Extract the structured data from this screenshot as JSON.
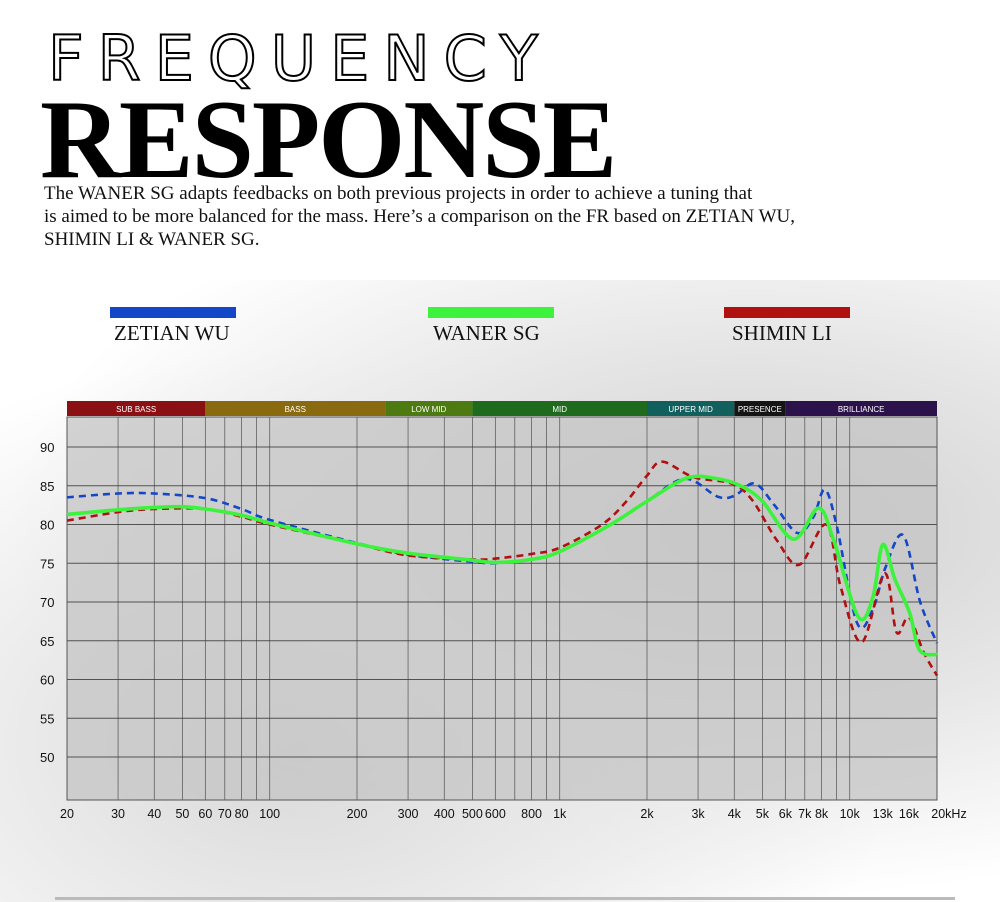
{
  "header": {
    "title_line1": "FREQUENCY",
    "title_line2": "RESPONSE",
    "description_lines": [
      "The WANER SG adapts feedbacks on both previous projects in order to achieve a tuning that",
      "is aimed to be more balanced for the mass. Here’s a comparison on the FR based on ZETIAN WU,",
      "SHIMIN LI & WANER SG."
    ]
  },
  "legend": [
    {
      "name": "ZETIAN WU",
      "color": "#1446c8",
      "style": "dashed"
    },
    {
      "name": "WANER SG",
      "color": "#3cf23c",
      "style": "solid"
    },
    {
      "name": "SHIMIN LI",
      "color": "#b01010",
      "style": "dashed"
    }
  ],
  "chart_data": {
    "type": "line",
    "x_scale": "log",
    "xlim": [
      20,
      20000
    ],
    "ylim": [
      44.5,
      94
    ],
    "grid": true,
    "legend_position": "top",
    "x_ticks": [
      20,
      30,
      40,
      50,
      60,
      70,
      80,
      100,
      200,
      300,
      400,
      500,
      600,
      800,
      1000,
      2000,
      3000,
      4000,
      5000,
      6000,
      7000,
      8000,
      10000,
      13000,
      16000,
      20000
    ],
    "x_tick_labels": [
      "20",
      "30",
      "40",
      "50",
      "60",
      "70",
      "80",
      "100",
      "200",
      "300",
      "400",
      "500",
      "600",
      "800",
      "1k",
      "2k",
      "3k",
      "4k",
      "5k",
      "6k",
      "7k",
      "8k",
      "10k",
      "13k",
      "16k",
      "20kHz"
    ],
    "y_ticks": [
      50,
      55,
      60,
      65,
      70,
      75,
      80,
      85,
      90
    ],
    "y_tick_labels": [
      "50",
      "55",
      "60",
      "65",
      "70",
      "75",
      "80",
      "85",
      "90"
    ],
    "bands": [
      {
        "label": "SUB BASS",
        "from": 20,
        "to": 60,
        "color": "#8b1014"
      },
      {
        "label": "BASS",
        "from": 60,
        "to": 250,
        "color": "#8a6a0e"
      },
      {
        "label": "LOW MID",
        "from": 250,
        "to": 500,
        "color": "#4e7a12"
      },
      {
        "label": "MID",
        "from": 500,
        "to": 2000,
        "color": "#1f6b1e"
      },
      {
        "label": "UPPER MID",
        "from": 2000,
        "to": 4000,
        "color": "#12605e"
      },
      {
        "label": "PRESENCE",
        "from": 4000,
        "to": 6000,
        "color": "#151515"
      },
      {
        "label": "BRILLIANCE",
        "from": 6000,
        "to": 20000,
        "color": "#2c124a"
      }
    ],
    "series": [
      {
        "name": "ZETIAN WU",
        "color": "#1446c8",
        "dashed": true,
        "points": [
          [
            20,
            83.5
          ],
          [
            30,
            84
          ],
          [
            40,
            84
          ],
          [
            60,
            83.4
          ],
          [
            80,
            82
          ],
          [
            100,
            80.6
          ],
          [
            200,
            77.6
          ],
          [
            300,
            76.1
          ],
          [
            500,
            75.2
          ],
          [
            600,
            75
          ],
          [
            800,
            75.5
          ],
          [
            1000,
            76.5
          ],
          [
            1500,
            80
          ],
          [
            2000,
            83
          ],
          [
            2700,
            85.9
          ],
          [
            3500,
            83.6
          ],
          [
            4000,
            83.7
          ],
          [
            4700,
            85.3
          ],
          [
            5500,
            82.5
          ],
          [
            6600,
            78.9
          ],
          [
            7500,
            81
          ],
          [
            8200,
            84.5
          ],
          [
            9000,
            80
          ],
          [
            10600,
            67.3
          ],
          [
            12000,
            69
          ],
          [
            13300,
            74.5
          ],
          [
            15300,
            78.6
          ],
          [
            17500,
            70
          ],
          [
            20000,
            64.7
          ]
        ]
      },
      {
        "name": "SHIMIN LI",
        "color": "#b01010",
        "dashed": true,
        "points": [
          [
            20,
            80.5
          ],
          [
            30,
            81.6
          ],
          [
            40,
            82
          ],
          [
            60,
            82
          ],
          [
            80,
            81
          ],
          [
            100,
            80
          ],
          [
            200,
            77.5
          ],
          [
            300,
            76
          ],
          [
            500,
            75.5
          ],
          [
            600,
            75.6
          ],
          [
            800,
            76.2
          ],
          [
            1000,
            77
          ],
          [
            1400,
            80
          ],
          [
            1700,
            83
          ],
          [
            2000,
            86.3
          ],
          [
            2260,
            88.1
          ],
          [
            2900,
            86.1
          ],
          [
            3900,
            85.3
          ],
          [
            4600,
            83.2
          ],
          [
            5600,
            78
          ],
          [
            6700,
            74.8
          ],
          [
            8300,
            80
          ],
          [
            9300,
            72
          ],
          [
            11000,
            64.8
          ],
          [
            13200,
            73.7
          ],
          [
            14500,
            66.1
          ],
          [
            16000,
            68
          ],
          [
            18000,
            63.5
          ],
          [
            20000,
            60.5
          ]
        ]
      },
      {
        "name": "WANER SG",
        "color": "#3cf23c",
        "dashed": false,
        "points": [
          [
            20,
            81.3
          ],
          [
            30,
            81.9
          ],
          [
            40,
            82.2
          ],
          [
            50,
            82.3
          ],
          [
            60,
            82
          ],
          [
            80,
            81.2
          ],
          [
            100,
            80.2
          ],
          [
            200,
            77.5
          ],
          [
            300,
            76.3
          ],
          [
            500,
            75.4
          ],
          [
            600,
            75.1
          ],
          [
            800,
            75.5
          ],
          [
            1000,
            76.5
          ],
          [
            1500,
            80
          ],
          [
            2000,
            83
          ],
          [
            2750,
            86
          ],
          [
            3500,
            85.9
          ],
          [
            4200,
            85
          ],
          [
            5000,
            83
          ],
          [
            6400,
            78.1
          ],
          [
            7800,
            82.1
          ],
          [
            8800,
            78
          ],
          [
            10700,
            68.1
          ],
          [
            12000,
            70.5
          ],
          [
            13000,
            77.4
          ],
          [
            14300,
            73
          ],
          [
            16100,
            68.6
          ],
          [
            17400,
            63.8
          ],
          [
            20000,
            63.2
          ]
        ]
      }
    ]
  }
}
